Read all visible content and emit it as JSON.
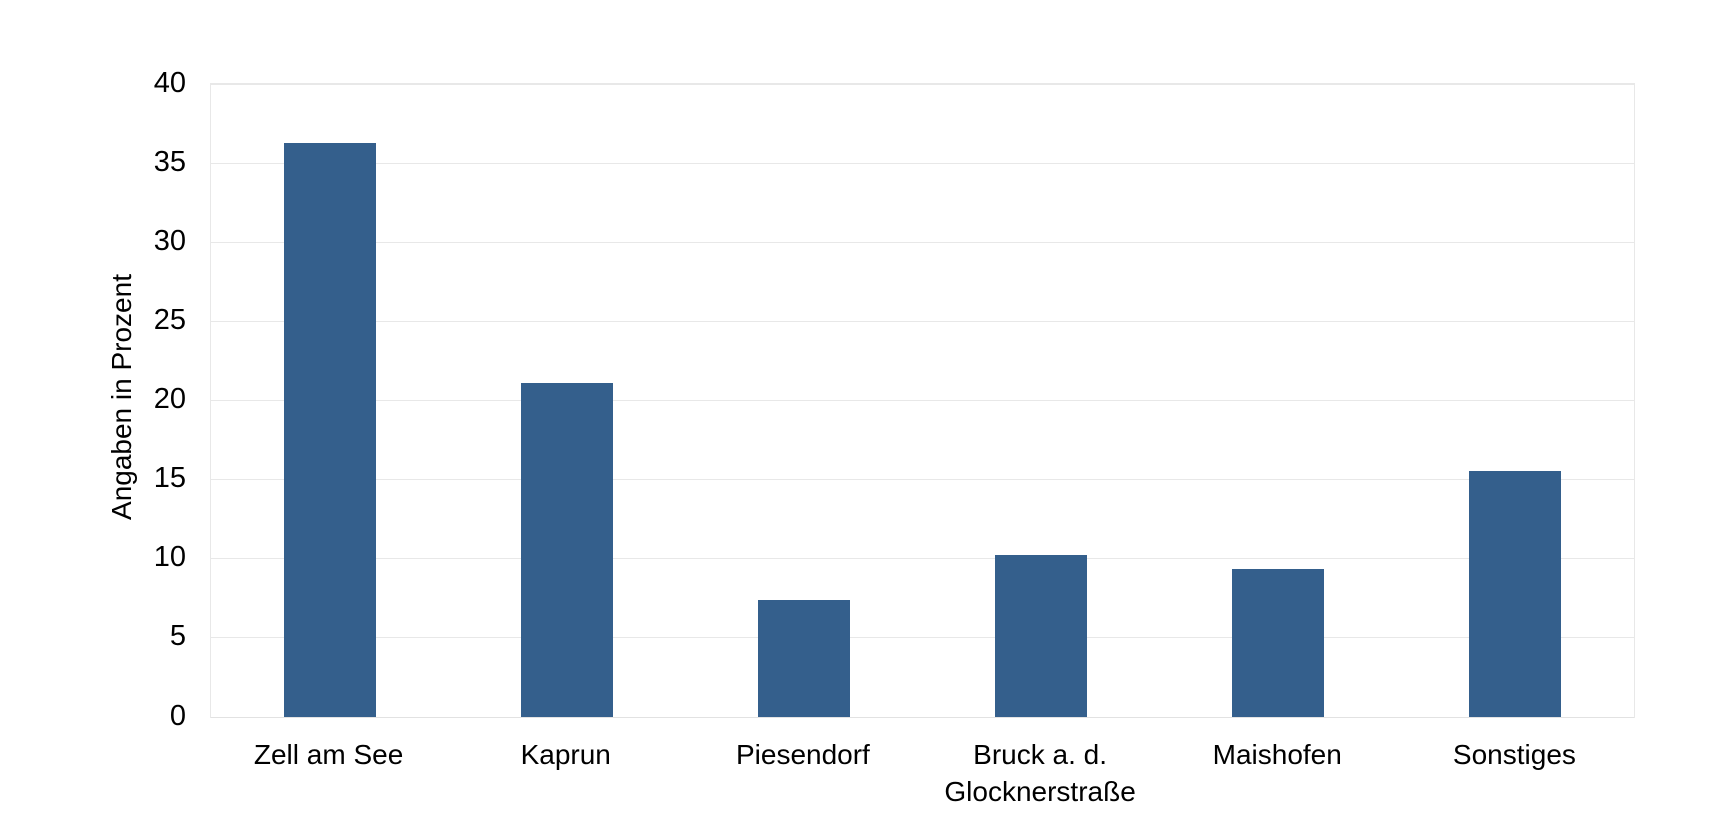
{
  "chart_data": {
    "type": "bar",
    "title": "",
    "xlabel": "",
    "ylabel": "Angaben in Prozent",
    "categories": [
      "Zell am See",
      "Kaprun",
      "Piesendorf",
      "Bruck a. d. Glocknerstraße",
      "Maishofen",
      "Sonstiges"
    ],
    "category_lines": [
      [
        "Zell am See"
      ],
      [
        "Kaprun"
      ],
      [
        "Piesendorf"
      ],
      [
        "Bruck a. d.",
        "Glocknerstraße"
      ],
      [
        "Maishofen"
      ],
      [
        "Sonstiges"
      ]
    ],
    "values": [
      36.3,
      21.1,
      7.4,
      10.2,
      9.3,
      15.5
    ],
    "ylim": [
      0,
      40
    ],
    "yticks": [
      0,
      5,
      10,
      15,
      20,
      25,
      30,
      35,
      40
    ],
    "grid": "horizontal",
    "legend": "none",
    "colors": {
      "bar": "#345F8C",
      "gridline": "#E8E8E8",
      "axis_line": "#E2E2E2",
      "text": "#000000",
      "background": "#FFFFFF"
    }
  }
}
